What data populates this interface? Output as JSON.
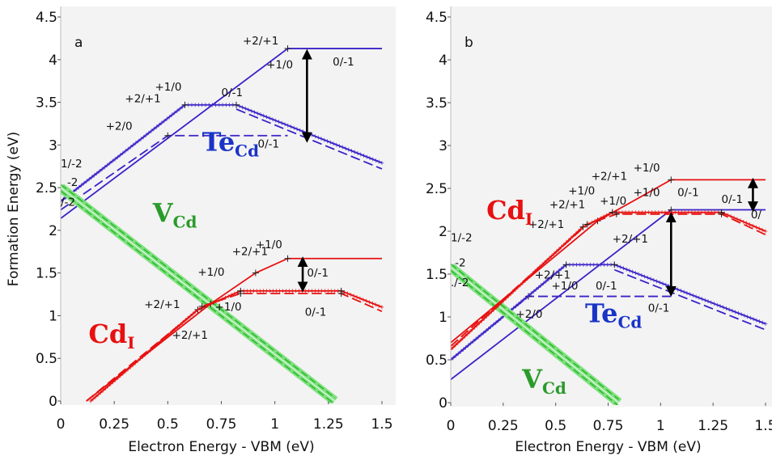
{
  "chart_data": [
    {
      "type": "line",
      "panel_label": "a",
      "xlabel": "Electron Energy - VBM (eV)",
      "ylabel": "Formation Energy (eV)",
      "xlim": [
        0,
        1.5
      ],
      "ylim": [
        0,
        4.5
      ],
      "xticks": [
        "0",
        "0.25",
        "0.5",
        "0.75",
        "1",
        "1.25",
        "1.5"
      ],
      "yticks": [
        "0",
        "0.5",
        "1",
        "1.5",
        "2",
        "2.5",
        "3",
        "3.5",
        "4",
        "4.5"
      ],
      "grid": false,
      "series": [
        {
          "color": "#3a22c8",
          "style": "solid",
          "x": [
            0,
            1.06,
            1.5
          ],
          "y": [
            2.14,
            4.13,
            4.13
          ]
        },
        {
          "color": "#3a22c8",
          "style": "dashed",
          "x": [
            0,
            0.5,
            1.06
          ],
          "y": [
            2.24,
            3.11,
            3.11
          ]
        },
        {
          "color": "#3a22c8",
          "style": "solid-marker",
          "x": [
            0,
            0.58,
            0.82,
            1.5
          ],
          "y": [
            2.34,
            3.47,
            3.47,
            2.79
          ]
        },
        {
          "color": "#3a22c8",
          "style": "dashed",
          "x": [
            0.82,
            1.5
          ],
          "y": [
            3.42,
            2.72
          ]
        },
        {
          "color": "#1db51d",
          "style": "band",
          "x": [
            0,
            1.28
          ],
          "y": [
            2.5,
            0
          ]
        },
        {
          "color": "#e81010",
          "style": "solid",
          "x": [
            0.12,
            0.7,
            0.91,
            1.06,
            1.5
          ],
          "y": [
            0,
            1.14,
            1.5,
            1.67,
            1.67
          ]
        },
        {
          "color": "#e81010",
          "style": "solid-marker",
          "x": [
            0.14,
            0.64,
            0.84,
            1.31,
            1.5
          ],
          "y": [
            0,
            1.07,
            1.29,
            1.29,
            1.1
          ]
        },
        {
          "color": "#e81010",
          "style": "dashed",
          "x": [
            0.12,
            0.66,
            0.84,
            1.31,
            1.5
          ],
          "y": [
            0,
            1.11,
            1.26,
            1.26,
            1.05
          ]
        }
      ],
      "arrows": [
        {
          "x": 1.15,
          "y1": 4.1,
          "y2": 3.05
        },
        {
          "x": 1.13,
          "y1": 1.67,
          "y2": 1.3
        }
      ],
      "species_labels": [
        {
          "main": "Te",
          "sub": "Cd",
          "color": "#1a34c7",
          "x": 0.66,
          "y": 2.93
        },
        {
          "main": "V",
          "sub": "Cd",
          "color": "#2a9b2a",
          "x": 0.43,
          "y": 2.1
        },
        {
          "main": "Cd",
          "sub": "I",
          "color": "#e81010",
          "x": 0.13,
          "y": 0.68
        }
      ],
      "transition_labels": [
        {
          "text": "+2/+1",
          "x": 0.85,
          "y": 4.18
        },
        {
          "text": "+1/0",
          "x": 0.96,
          "y": 3.9
        },
        {
          "text": "0/-1",
          "x": 1.27,
          "y": 3.93
        },
        {
          "text": "+1/0",
          "x": 0.44,
          "y": 3.64
        },
        {
          "text": "+2/+1",
          "x": 0.3,
          "y": 3.5
        },
        {
          "text": "0/-1",
          "x": 0.75,
          "y": 3.57
        },
        {
          "text": "+2/0",
          "x": 0.21,
          "y": 3.18
        },
        {
          "text": "0/-1",
          "x": 0.92,
          "y": 2.97
        },
        {
          "text": "1/-2",
          "x": 0,
          "y": 2.74
        },
        {
          "text": "-2",
          "x": 0.03,
          "y": 2.52
        },
        {
          "text": "/-2",
          "x": 0,
          "y": 2.29
        },
        {
          "text": "+2/+1",
          "x": 0.8,
          "y": 1.71
        },
        {
          "text": "+1/0",
          "x": 0.91,
          "y": 1.79
        },
        {
          "text": "+1/0",
          "x": 0.64,
          "y": 1.47
        },
        {
          "text": "0/-1",
          "x": 1.15,
          "y": 1.46
        },
        {
          "text": "+2/+1",
          "x": 0.39,
          "y": 1.09
        },
        {
          "text": "+1/0",
          "x": 0.72,
          "y": 1.06
        },
        {
          "text": "0/-1",
          "x": 1.14,
          "y": 1.0
        },
        {
          "text": "+2/+1",
          "x": 0.52,
          "y": 0.73
        }
      ]
    },
    {
      "type": "line",
      "panel_label": "b",
      "xlabel": "Electron Energy - VBM (eV)",
      "ylabel": "",
      "xlim": [
        0,
        1.5
      ],
      "ylim": [
        0,
        4.5
      ],
      "xticks": [
        "0",
        "0.25",
        "0.5",
        "0.75",
        "1",
        "1.25",
        "1.5"
      ],
      "yticks": [
        "0",
        "0.5",
        "1",
        "1.5",
        "2",
        "2.5",
        "3",
        "3.5",
        "4",
        "4.5"
      ],
      "grid": false,
      "series": [
        {
          "color": "#3a22c8",
          "style": "solid",
          "x": [
            0,
            1.05,
            1.5
          ],
          "y": [
            0.27,
            2.25,
            2.25
          ]
        },
        {
          "color": "#3a22c8",
          "style": "dashed",
          "x": [
            0,
            0.37,
            1.05
          ],
          "y": [
            0.5,
            1.24,
            1.24
          ]
        },
        {
          "color": "#3a22c8",
          "style": "solid-marker",
          "x": [
            0,
            0.55,
            0.78,
            1.5
          ],
          "y": [
            0.5,
            1.61,
            1.61,
            0.92
          ]
        },
        {
          "color": "#3a22c8",
          "style": "dashed",
          "x": [
            0.78,
            1.5
          ],
          "y": [
            1.55,
            0.85
          ]
        },
        {
          "color": "#1db51d",
          "style": "band",
          "x": [
            0,
            0.8
          ],
          "y": [
            1.58,
            0
          ]
        },
        {
          "color": "#e81010",
          "style": "solid",
          "x": [
            0,
            0.7,
            1.05,
            1.5
          ],
          "y": [
            0.7,
            2.12,
            2.6,
            2.6
          ]
        },
        {
          "color": "#e81010",
          "style": "solid-marker",
          "x": [
            0,
            0.63,
            0.77,
            1.29,
            1.5
          ],
          "y": [
            0.62,
            2.05,
            2.22,
            2.22,
            2.0
          ]
        },
        {
          "color": "#e81010",
          "style": "dashed",
          "x": [
            0,
            0.65,
            0.79,
            1.29,
            1.5
          ],
          "y": [
            0.66,
            2.08,
            2.2,
            2.2,
            1.96
          ]
        }
      ],
      "arrows": [
        {
          "x": 1.44,
          "y1": 2.6,
          "y2": 2.25
        },
        {
          "x": 1.05,
          "y1": 2.2,
          "y2": 1.26
        }
      ],
      "species_labels": [
        {
          "main": "Te",
          "sub": "Cd",
          "color": "#1a34c7",
          "x": 0.64,
          "y": 0.94
        },
        {
          "main": "V",
          "sub": "Cd",
          "color": "#2a9b2a",
          "x": 0.34,
          "y": 0.17
        },
        {
          "main": "Cd",
          "sub": "I",
          "color": "#e81010",
          "x": 0.17,
          "y": 2.14
        }
      ],
      "transition_labels": [
        {
          "text": "+1/0",
          "x": 0.87,
          "y": 2.7
        },
        {
          "text": "+2/+1",
          "x": 0.67,
          "y": 2.6
        },
        {
          "text": "+1/0",
          "x": 0.56,
          "y": 2.43
        },
        {
          "text": "+2/+1",
          "x": 0.47,
          "y": 2.27
        },
        {
          "text": "+1/0",
          "x": 0.71,
          "y": 2.31
        },
        {
          "text": "+1/0",
          "x": 0.87,
          "y": 2.41
        },
        {
          "text": "0/-1",
          "x": 1.08,
          "y": 2.41
        },
        {
          "text": "0/-1",
          "x": 1.29,
          "y": 2.33
        },
        {
          "text": "0/",
          "x": 1.43,
          "y": 2.15
        },
        {
          "text": "+2/+1",
          "x": 0.37,
          "y": 2.04
        },
        {
          "text": "+2/+1",
          "x": 0.77,
          "y": 1.87
        },
        {
          "text": "1/-2",
          "x": 0,
          "y": 1.88
        },
        {
          "text": "-2",
          "x": 0.02,
          "y": 1.59
        },
        {
          "text": "./-2",
          "x": 0,
          "y": 1.36
        },
        {
          "text": "+2/+1",
          "x": 0.4,
          "y": 1.45
        },
        {
          "text": "+1/0",
          "x": 0.48,
          "y": 1.32
        },
        {
          "text": "0/-1",
          "x": 0.69,
          "y": 1.32
        },
        {
          "text": "+2/0",
          "x": 0.31,
          "y": 0.99
        },
        {
          "text": "0/-1",
          "x": 0.94,
          "y": 1.06
        }
      ]
    }
  ]
}
